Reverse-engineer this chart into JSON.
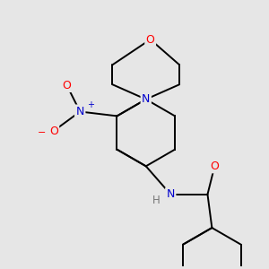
{
  "background_color": "#e6e6e6",
  "bond_color": "#000000",
  "atom_colors": {
    "O": "#ff0000",
    "N": "#0000cd",
    "H": "#777777",
    "C": "#000000"
  },
  "figsize": [
    3.0,
    3.0
  ],
  "dpi": 100
}
